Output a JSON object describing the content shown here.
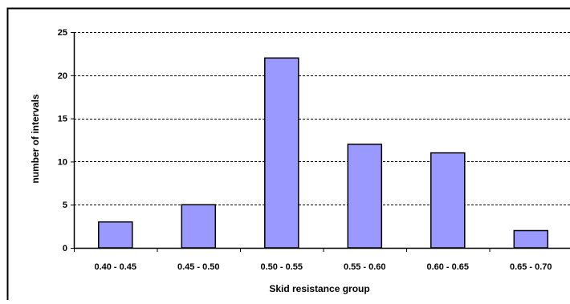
{
  "chart_data": {
    "type": "bar",
    "title": "",
    "xlabel": "Skid resistance group",
    "ylabel": "number of intervals",
    "categories": [
      "0.40 - 0.45",
      "0.45 - 0.50",
      "0.50 - 0.55",
      "0.55 - 0.60",
      "0.60 - 0.65",
      "0.65 - 0.70"
    ],
    "values": [
      3,
      5,
      22,
      12,
      11,
      2
    ],
    "ylim": [
      0,
      25
    ],
    "yticks": [
      0,
      5,
      10,
      15,
      20,
      25
    ],
    "ytick_labels": [
      "0",
      "5",
      "10",
      "15",
      "20",
      "25"
    ],
    "grid": "horizontal dashed",
    "legend": "none",
    "bar_color": "#9999ff",
    "bar_edge_color": "#000000"
  }
}
